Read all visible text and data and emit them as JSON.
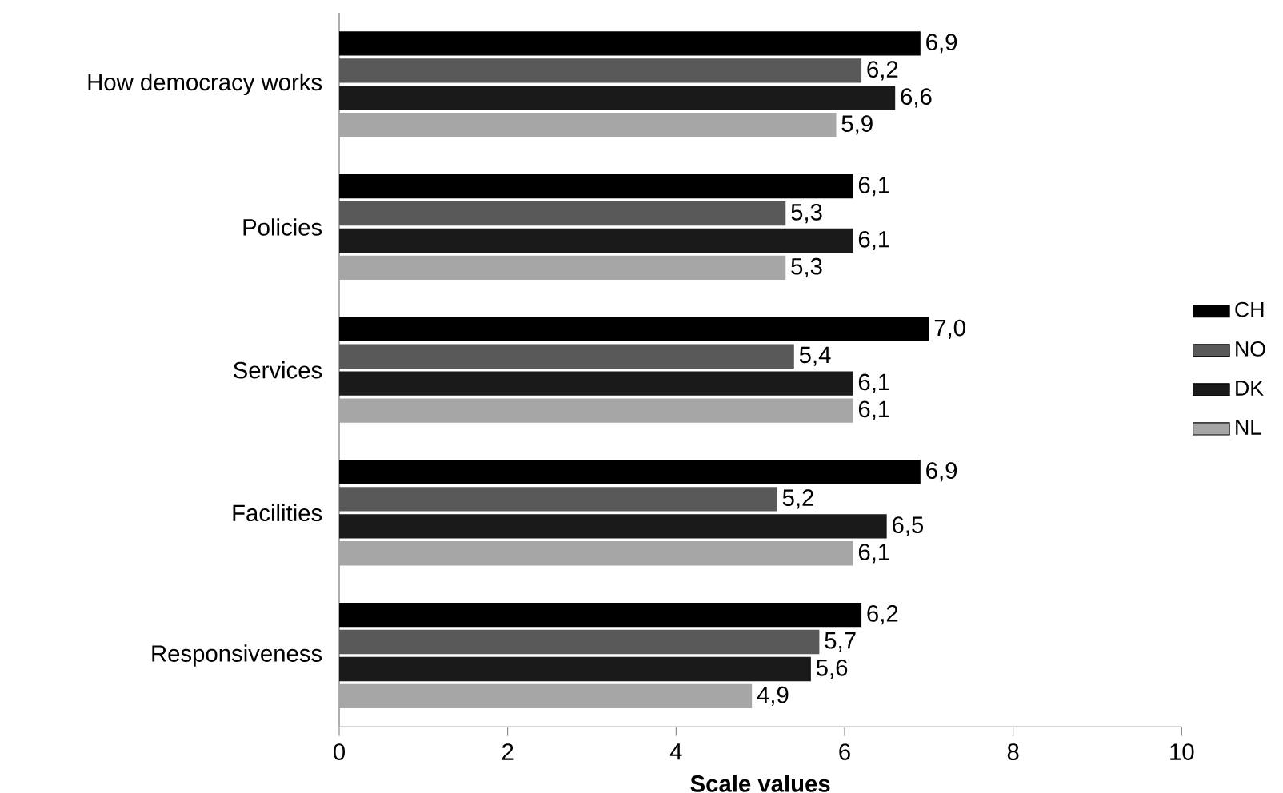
{
  "chart_data": {
    "type": "bar",
    "orientation": "horizontal",
    "xlabel": "Scale values",
    "categories": [
      "How democracy works",
      "Policies",
      "Services",
      "Facilities",
      "Responsiveness"
    ],
    "series": [
      {
        "name": "CH",
        "color": "#000000",
        "values": [
          6.9,
          6.1,
          7.0,
          6.9,
          6.2
        ],
        "value_labels": [
          "6,9",
          "6,1",
          "7,0",
          "6,9",
          "6,2"
        ]
      },
      {
        "name": "NO",
        "color": "#595959",
        "values": [
          6.2,
          5.3,
          5.4,
          5.2,
          5.7
        ],
        "value_labels": [
          "6,2",
          "5,3",
          "5,4",
          "5,2",
          "5,7"
        ]
      },
      {
        "name": "DK",
        "color": "#1a1a1a",
        "values": [
          6.6,
          6.1,
          6.1,
          6.5,
          5.6
        ],
        "value_labels": [
          "6,6",
          "6,1",
          "6,1",
          "6,5",
          "5,6"
        ]
      },
      {
        "name": "NL",
        "color": "#a6a6a6",
        "values": [
          5.9,
          5.3,
          6.1,
          6.1,
          4.9
        ],
        "value_labels": [
          "5,9",
          "5,3",
          "6,1",
          "6,1",
          "4,9"
        ]
      }
    ],
    "xlim": [
      0,
      10
    ],
    "xticks": [
      0,
      2,
      4,
      6,
      8,
      10
    ],
    "legend": "right",
    "grid": false
  }
}
